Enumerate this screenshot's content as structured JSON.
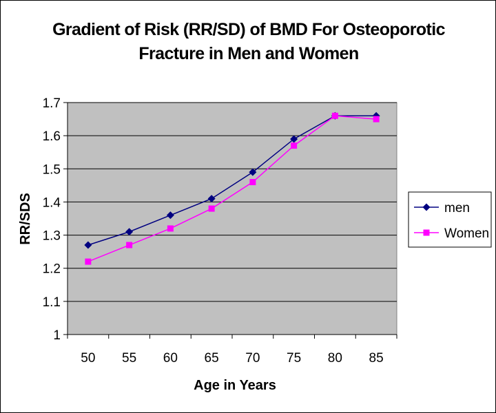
{
  "chart_data": {
    "type": "line",
    "title_lines": [
      "Gradient of Risk (RR/SD) of BMD For Osteoporotic",
      "Fracture in Men and Women"
    ],
    "xlabel": "Age in Years",
    "ylabel": "RR/SDS",
    "categories": [
      "50",
      "55",
      "60",
      "65",
      "70",
      "75",
      "80",
      "85"
    ],
    "y_ticks": [
      "1",
      "1.1",
      "1.2",
      "1.3",
      "1.4",
      "1.5",
      "1.6",
      "1.7"
    ],
    "ylim": [
      1,
      1.7
    ],
    "grid": true,
    "legend_position": "right",
    "plot_background": "#c0c0c0",
    "series": [
      {
        "name": "men",
        "color": "#000080",
        "marker": "diamond",
        "values": [
          1.27,
          1.31,
          1.36,
          1.41,
          1.49,
          1.59,
          1.66,
          1.66
        ]
      },
      {
        "name": "Women",
        "color": "#ff00ff",
        "marker": "square",
        "values": [
          1.22,
          1.27,
          1.32,
          1.38,
          1.46,
          1.57,
          1.66,
          1.65
        ]
      }
    ]
  }
}
